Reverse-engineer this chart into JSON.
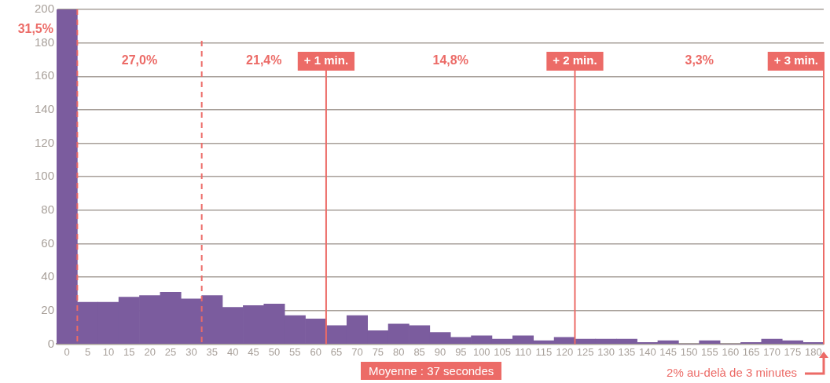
{
  "chart_data": {
    "type": "bar",
    "x": [
      0,
      5,
      10,
      15,
      20,
      25,
      30,
      35,
      40,
      45,
      50,
      55,
      60,
      65,
      70,
      75,
      80,
      85,
      90,
      95,
      100,
      105,
      110,
      115,
      120,
      125,
      130,
      135,
      140,
      145,
      150,
      155,
      160,
      165,
      170,
      175,
      180
    ],
    "values": [
      200,
      25,
      25,
      28,
      29,
      31,
      27,
      29,
      22,
      23,
      24,
      17,
      15,
      11,
      17,
      8,
      12,
      11,
      7,
      4,
      5,
      3,
      5,
      2,
      4,
      3,
      3,
      3,
      1,
      2,
      0,
      2,
      0,
      1,
      3,
      2,
      1
    ],
    "color": "#7b5c9e",
    "xlim": [
      -2.5,
      182.5
    ],
    "xticks": [
      0,
      5,
      10,
      15,
      20,
      25,
      30,
      35,
      40,
      45,
      50,
      55,
      60,
      65,
      70,
      75,
      80,
      85,
      90,
      95,
      100,
      105,
      110,
      115,
      120,
      125,
      130,
      135,
      140,
      145,
      150,
      155,
      160,
      165,
      170,
      175,
      180
    ],
    "ylim": [
      0,
      200
    ],
    "yticks": [
      0,
      20,
      40,
      60,
      80,
      100,
      120,
      140,
      160,
      180,
      200
    ],
    "grid": "y",
    "ref_lines": [
      {
        "axis": "x",
        "value": 2.5,
        "color": "#ec6b67",
        "line_style": "dashed"
      },
      {
        "axis": "x",
        "value": 32.5,
        "color": "#ec6b67",
        "line_style": "dashed"
      },
      {
        "axis": "x",
        "value": 62.5,
        "label": "+ 1 min.",
        "color": "#ec6b67",
        "line_style": "solid"
      },
      {
        "axis": "x",
        "value": 122.5,
        "label": "+ 2 min.",
        "color": "#ec6b67",
        "line_style": "solid"
      },
      {
        "axis": "x",
        "value": 182.5,
        "label": "+ 3 min.",
        "color": "#ec6b67",
        "line_style": "solid"
      }
    ],
    "annotations": [
      "31,5%",
      "27,0%",
      "21,4%",
      "14,8%",
      "3,3%",
      "Moyenne : 37 secondes",
      "2% au-delà de 3 minutes"
    ]
  }
}
